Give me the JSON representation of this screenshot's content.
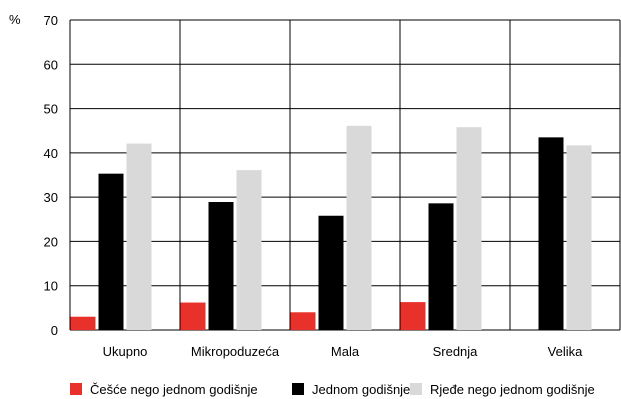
{
  "chart_data": {
    "type": "bar",
    "y_unit_label": "%",
    "ylim": [
      0,
      70
    ],
    "yticks": [
      0,
      10,
      20,
      30,
      40,
      50,
      60,
      70
    ],
    "grid": true,
    "legend_position": "bottom",
    "categories": [
      "Ukupno",
      "Mikropoduzeća",
      "Mala",
      "Srednja",
      "Velika"
    ],
    "series": [
      {
        "name": "Češće nego jednom godišnje",
        "color": "#e8312a",
        "values": [
          3,
          6.2,
          4,
          6.3,
          null
        ]
      },
      {
        "name": "Jednom godišnje",
        "color": "#000000",
        "values": [
          35.3,
          28.9,
          25.8,
          28.6,
          43.5
        ]
      },
      {
        "name": "Rjeđe nego jednom godišnje",
        "color": "#d9d9d9",
        "values": [
          42.1,
          36.1,
          46.1,
          45.8,
          41.7
        ]
      }
    ]
  }
}
